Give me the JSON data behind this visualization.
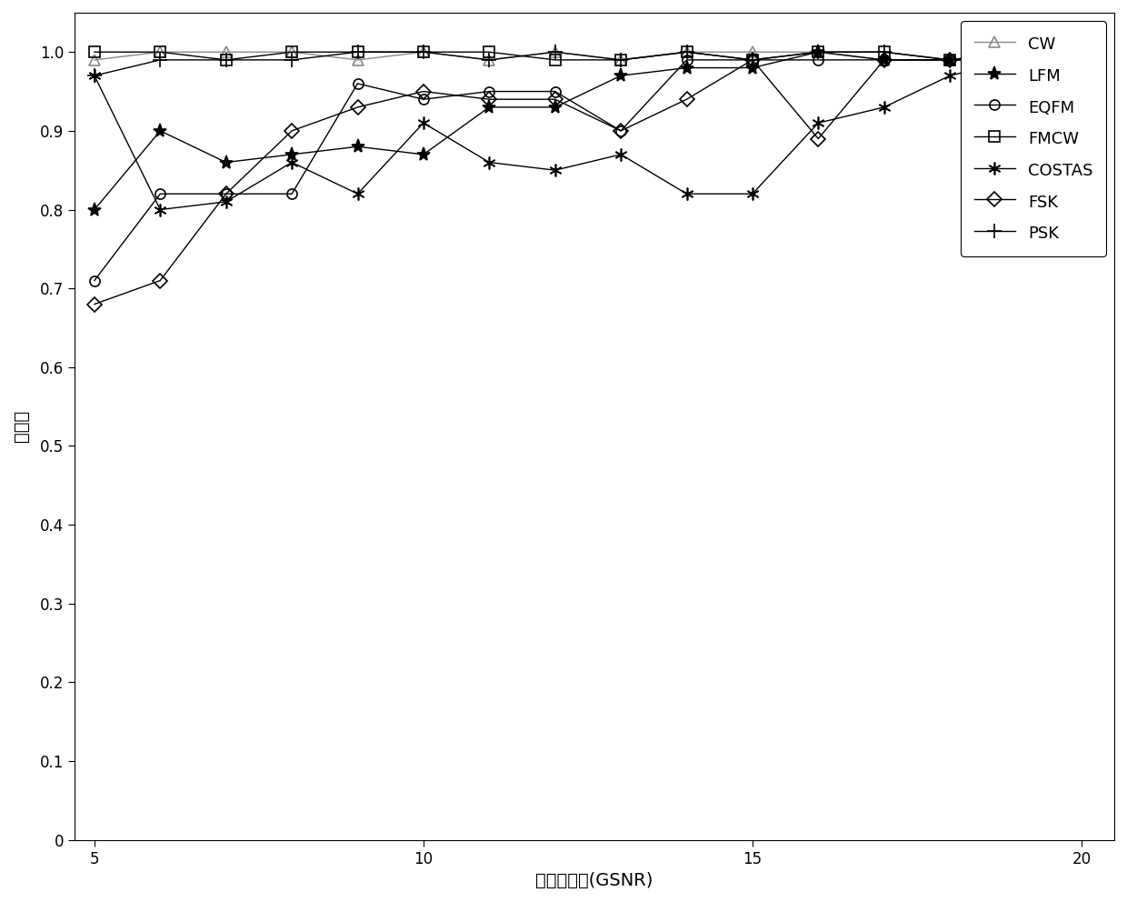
{
  "x": [
    5,
    6,
    7,
    8,
    9,
    10,
    11,
    12,
    13,
    14,
    15,
    16,
    17,
    18,
    19,
    20
  ],
  "CW": [
    0.99,
    1.0,
    1.0,
    1.0,
    0.99,
    1.0,
    0.99,
    1.0,
    0.99,
    1.0,
    1.0,
    1.0,
    0.99,
    0.99,
    1.0,
    0.99
  ],
  "LFM": [
    0.8,
    0.9,
    0.86,
    0.87,
    0.88,
    0.87,
    0.93,
    0.93,
    0.97,
    0.98,
    0.98,
    1.0,
    0.99,
    0.99,
    1.0,
    0.99
  ],
  "EQFM": [
    0.71,
    0.82,
    0.82,
    0.82,
    0.96,
    0.94,
    0.95,
    0.95,
    0.9,
    0.99,
    0.99,
    0.99,
    0.99,
    0.99,
    0.99,
    0.99
  ],
  "FMCW": [
    1.0,
    1.0,
    0.99,
    1.0,
    1.0,
    1.0,
    1.0,
    0.99,
    0.99,
    1.0,
    0.99,
    1.0,
    1.0,
    0.99,
    1.0,
    1.0
  ],
  "COSTAS": [
    0.97,
    0.8,
    0.81,
    0.86,
    0.82,
    0.91,
    0.86,
    0.85,
    0.87,
    0.82,
    0.82,
    0.91,
    0.93,
    0.97,
    0.99,
    0.99
  ],
  "FSK": [
    0.68,
    0.71,
    0.82,
    0.9,
    0.93,
    0.95,
    0.94,
    0.94,
    0.9,
    0.94,
    0.99,
    0.89,
    0.99,
    0.99,
    0.99,
    0.99
  ],
  "PSK": [
    0.97,
    0.99,
    0.99,
    0.99,
    1.0,
    1.0,
    0.99,
    1.0,
    0.99,
    1.0,
    0.99,
    1.0,
    1.0,
    0.99,
    1.0,
    1.0
  ],
  "xlabel": "广义信噪比(GSNR)",
  "ylabel": "识别率",
  "ylim": [
    0,
    1.05
  ],
  "yticks": [
    0,
    0.1,
    0.2,
    0.3,
    0.4,
    0.5,
    0.6,
    0.7,
    0.8,
    0.9,
    1.0
  ],
  "xticks": [
    5,
    10,
    15,
    20
  ],
  "series_keys": [
    "CW",
    "LFM",
    "EQFM",
    "FMCW",
    "COSTAS",
    "FSK",
    "PSK"
  ],
  "markers": [
    "^",
    "*",
    "o",
    "s",
    "*",
    "D",
    "+"
  ],
  "markersizes": [
    8,
    11,
    8,
    8,
    11,
    8,
    11
  ],
  "line_colors": [
    "#888888",
    "#000000",
    "#000000",
    "#000000",
    "#000000",
    "#000000",
    "#000000"
  ],
  "mfc": [
    "none",
    "#000000",
    "none",
    "none",
    "none",
    "none",
    "#000000"
  ],
  "linewidth": 1.0,
  "xlabel_fontsize": 14,
  "ylabel_fontsize": 14,
  "tick_fontsize": 12,
  "legend_fontsize": 13
}
